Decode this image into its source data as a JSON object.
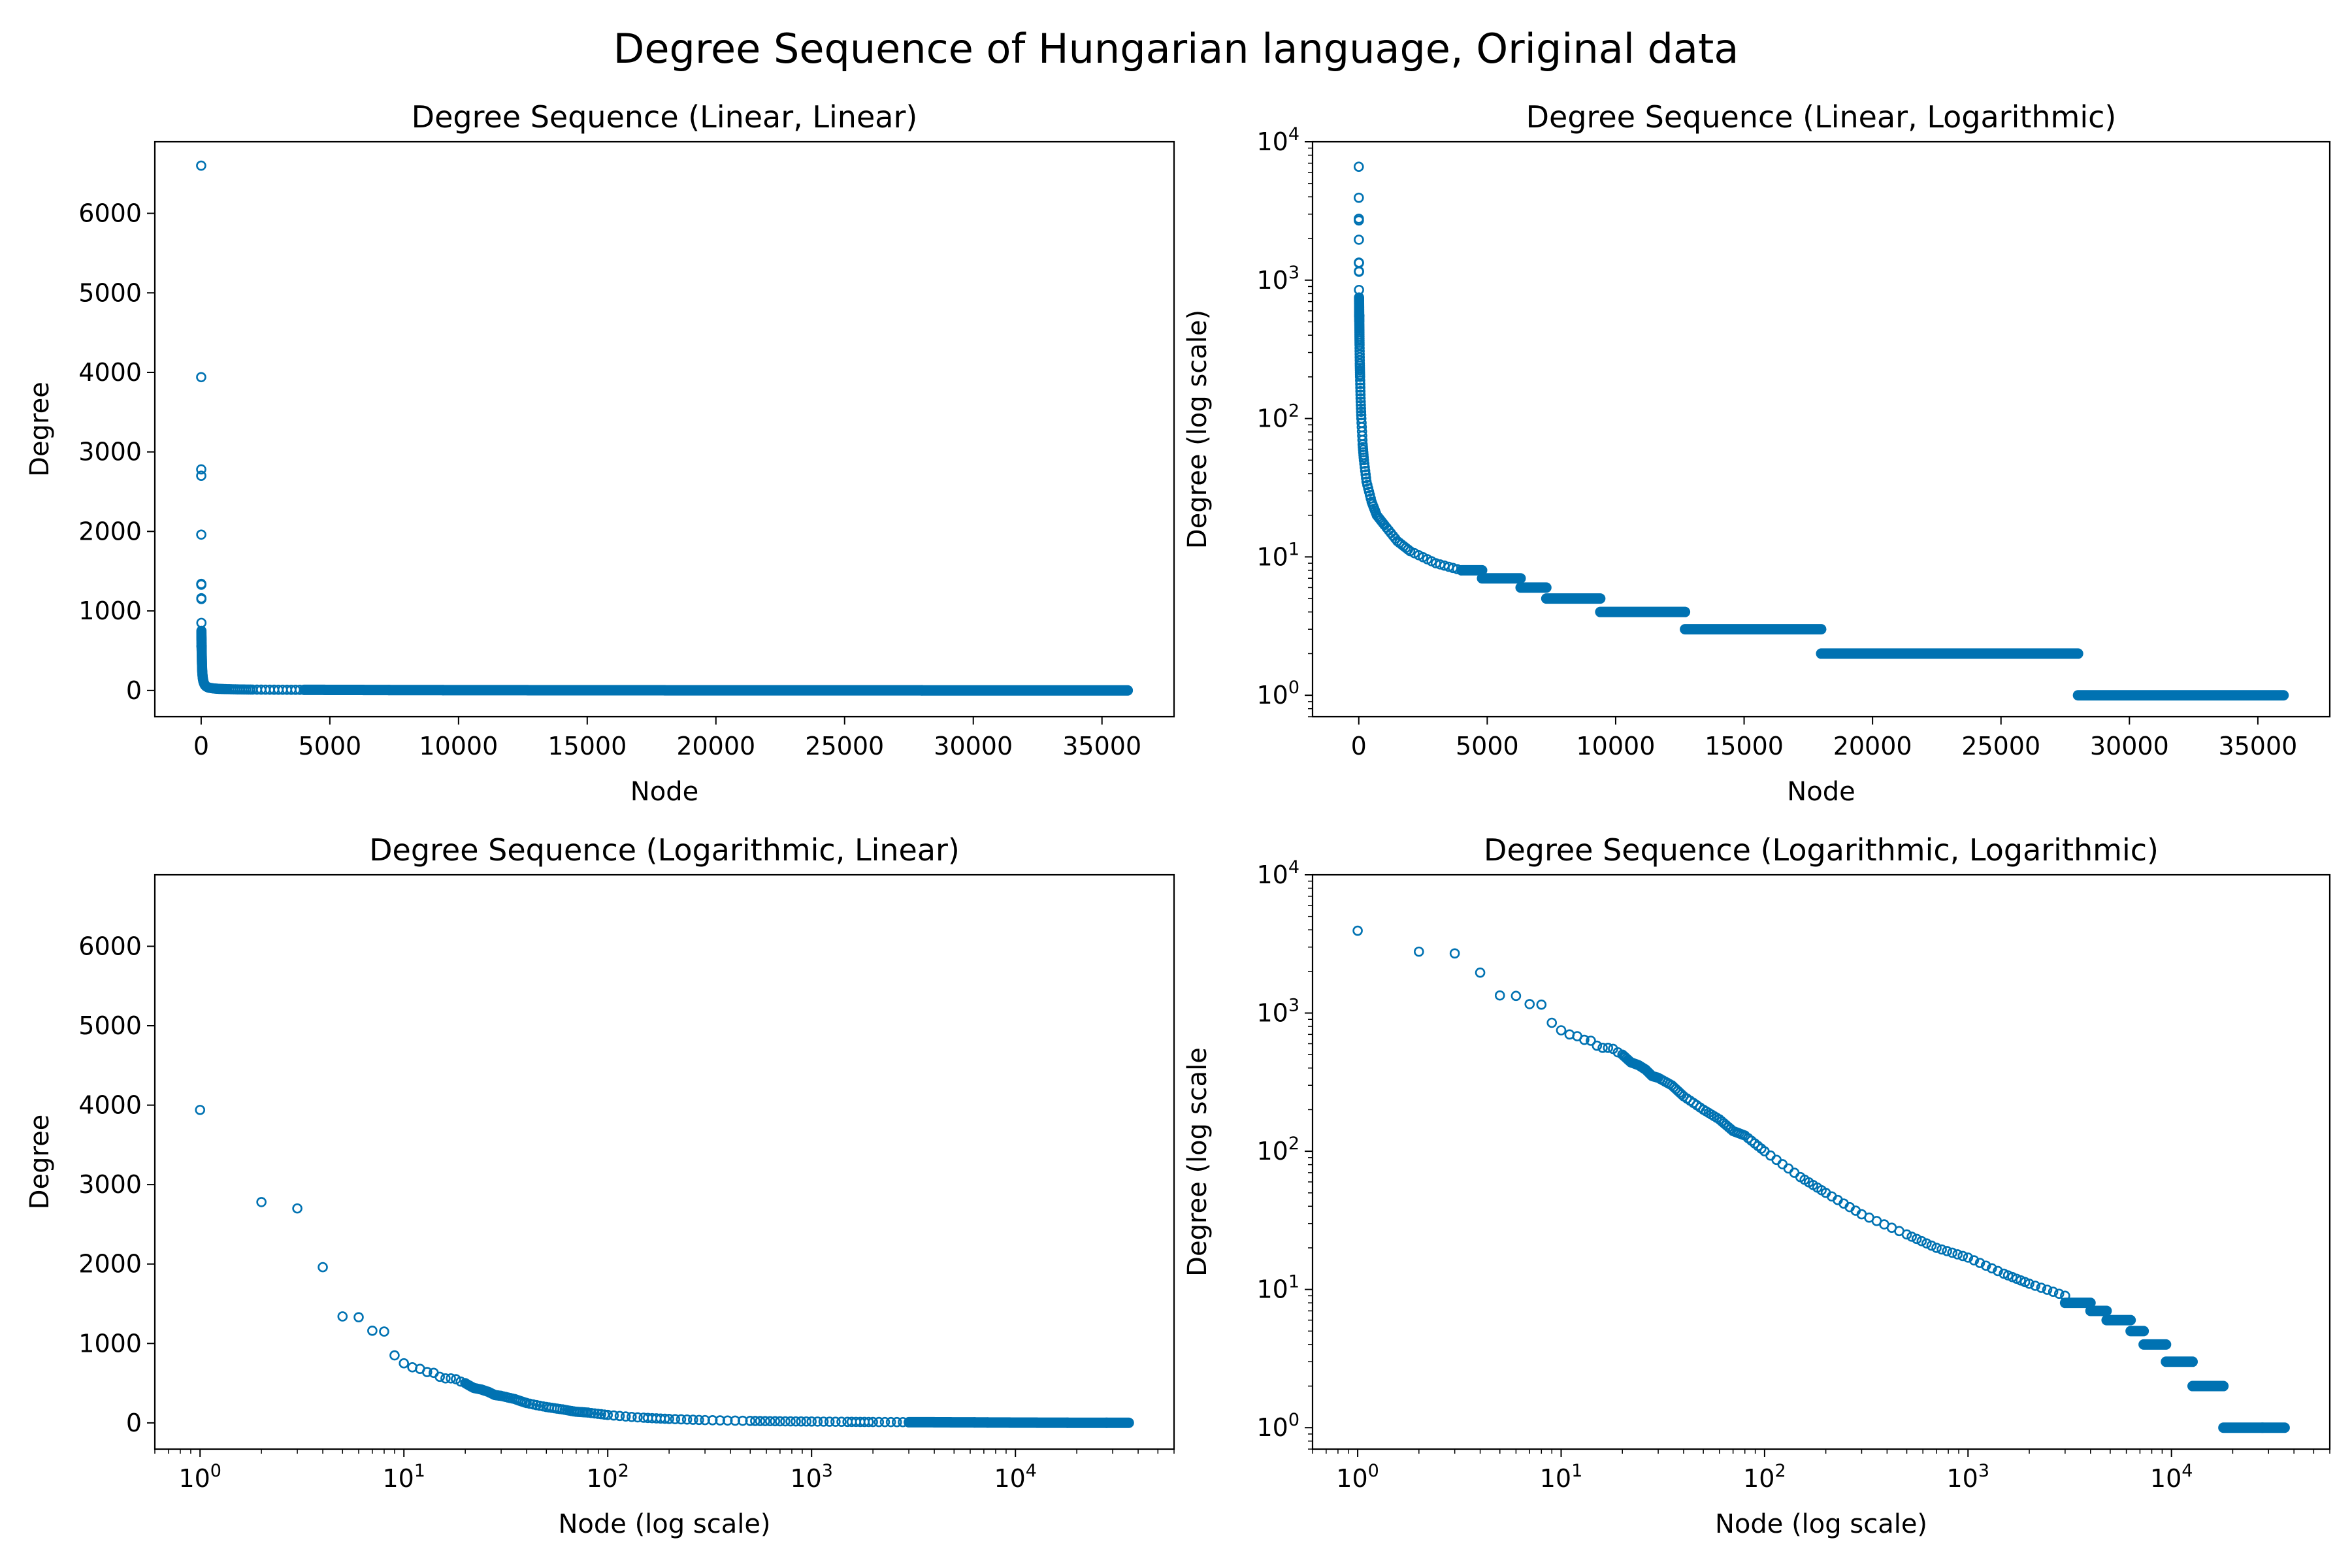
{
  "suptitle": "Degree Sequence of Hungarian language, Original data",
  "marker_color": "#0072b2",
  "chart_data": [
    {
      "type": "scatter",
      "title": "Degree Sequence (Linear, Linear)",
      "xlabel": "Node",
      "ylabel": "Degree",
      "xscale": "linear",
      "yscale": "linear",
      "xlim": [
        -1800,
        37800
      ],
      "ylim": [
        -330,
        6900
      ],
      "xticks": [
        0,
        5000,
        10000,
        15000,
        20000,
        25000,
        30000,
        35000
      ],
      "xtick_labels": [
        "0",
        "5000",
        "10000",
        "15000",
        "20000",
        "25000",
        "30000",
        "35000"
      ],
      "yticks": [
        0,
        1000,
        2000,
        3000,
        4000,
        5000,
        6000
      ],
      "ytick_labels": [
        "0",
        "1000",
        "2000",
        "3000",
        "4000",
        "5000",
        "6000"
      ],
      "grid": false,
      "series": [
        {
          "x": [
            0,
            1,
            2,
            3,
            4,
            5,
            6,
            7,
            8,
            9,
            10,
            12,
            14,
            16,
            18,
            20,
            25,
            30,
            40,
            50,
            70,
            100,
            150,
            200,
            300,
            500,
            700,
            1000,
            1500,
            2000,
            3000,
            4000
          ],
          "values": [
            6600,
            3940,
            2780,
            2700,
            1960,
            1340,
            1330,
            1160,
            1150,
            850,
            750,
            680,
            630,
            560,
            550,
            500,
            420,
            340,
            250,
            200,
            140,
            100,
            65,
            50,
            35,
            25,
            20,
            17,
            13,
            11,
            9,
            8
          ],
          "step_segments": [
            [
              4000,
              4800,
              8
            ],
            [
              4800,
              6300,
              7
            ],
            [
              6300,
              7300,
              6
            ],
            [
              7300,
              9400,
              5
            ],
            [
              9400,
              12700,
              4
            ],
            [
              12700,
              18000,
              3
            ],
            [
              18000,
              28000,
              2
            ],
            [
              28000,
              36000,
              1
            ]
          ]
        }
      ]
    },
    {
      "type": "scatter",
      "title": "Degree Sequence (Linear, Logarithmic)",
      "xlabel": "Node",
      "ylabel": "Degree (log scale)",
      "xscale": "linear",
      "yscale": "log",
      "xlim": [
        -1800,
        37800
      ],
      "ylim": [
        0.7,
        10000
      ],
      "xticks": [
        0,
        5000,
        10000,
        15000,
        20000,
        25000,
        30000,
        35000
      ],
      "xtick_labels": [
        "0",
        "5000",
        "10000",
        "15000",
        "20000",
        "25000",
        "30000",
        "35000"
      ],
      "yticks": [
        1,
        10,
        100,
        1000,
        10000
      ],
      "ytick_labels": [
        [
          "10",
          "0"
        ],
        [
          "10",
          "1"
        ],
        [
          "10",
          "2"
        ],
        [
          "10",
          "3"
        ],
        [
          "10",
          "4"
        ]
      ],
      "grid": false,
      "series": [
        {
          "x": [
            0,
            1,
            2,
            3,
            4,
            5,
            6,
            7,
            8,
            9,
            10,
            12,
            14,
            16,
            18,
            20,
            25,
            30,
            40,
            50,
            70,
            100,
            150,
            200,
            300,
            500,
            700,
            1000,
            1500,
            2000,
            3000,
            4000
          ],
          "values": [
            6600,
            3940,
            2780,
            2700,
            1960,
            1340,
            1330,
            1160,
            1150,
            850,
            750,
            680,
            630,
            560,
            550,
            500,
            420,
            340,
            250,
            200,
            140,
            100,
            65,
            50,
            35,
            25,
            20,
            17,
            13,
            11,
            9,
            8
          ],
          "step_segments": [
            [
              4000,
              4800,
              8
            ],
            [
              4800,
              6300,
              7
            ],
            [
              6300,
              7300,
              6
            ],
            [
              7300,
              9400,
              5
            ],
            [
              9400,
              12700,
              4
            ],
            [
              12700,
              18000,
              3
            ],
            [
              18000,
              28000,
              2
            ],
            [
              28000,
              36000,
              1
            ]
          ]
        }
      ]
    },
    {
      "type": "scatter",
      "title": "Degree Sequence (Logarithmic, Linear)",
      "xlabel": "Node (log scale)",
      "ylabel": "Degree",
      "xscale": "log",
      "yscale": "linear",
      "xlim": [
        0.6,
        60000
      ],
      "ylim": [
        -330,
        6900
      ],
      "xticks": [
        1,
        10,
        100,
        1000,
        10000
      ],
      "xtick_labels": [
        [
          "10",
          "0"
        ],
        [
          "10",
          "1"
        ],
        [
          "10",
          "2"
        ],
        [
          "10",
          "3"
        ],
        [
          "10",
          "4"
        ]
      ],
      "yticks": [
        0,
        1000,
        2000,
        3000,
        4000,
        5000,
        6000
      ],
      "ytick_labels": [
        "0",
        "1000",
        "2000",
        "3000",
        "4000",
        "5000",
        "6000"
      ],
      "grid": false,
      "series": [
        {
          "x": [
            1,
            2,
            3,
            4,
            5,
            6,
            7,
            8,
            9,
            10,
            11,
            12,
            13,
            14,
            15,
            16,
            17,
            18,
            19,
            20,
            22,
            24,
            26,
            28,
            30,
            35,
            40,
            50,
            60,
            70,
            80,
            100,
            150,
            200,
            300,
            500,
            700,
            1000,
            1500,
            2000,
            3000
          ],
          "values": [
            3940,
            2780,
            2700,
            1960,
            1340,
            1330,
            1160,
            1150,
            850,
            750,
            700,
            680,
            640,
            630,
            580,
            560,
            560,
            550,
            520,
            500,
            440,
            420,
            390,
            350,
            340,
            300,
            250,
            200,
            170,
            140,
            130,
            100,
            65,
            50,
            35,
            25,
            20,
            17,
            13,
            11,
            9
          ],
          "step_segments": [
            [
              3000,
              4000,
              8
            ],
            [
              4000,
              4800,
              7
            ],
            [
              4800,
              6300,
              6
            ],
            [
              6300,
              7300,
              5
            ],
            [
              7300,
              9400,
              4
            ],
            [
              9400,
              12700,
              3
            ],
            [
              12700,
              18000,
              2
            ],
            [
              18000,
              28000,
              1
            ],
            [
              28000,
              36000,
              1
            ]
          ]
        }
      ]
    },
    {
      "type": "scatter",
      "title": "Degree Sequence (Logarithmic, Logarithmic)",
      "xlabel": "Node (log scale)",
      "ylabel": "Degree (log scale",
      "xscale": "log",
      "yscale": "log",
      "xlim": [
        0.6,
        60000
      ],
      "ylim": [
        0.7,
        10000
      ],
      "xticks": [
        1,
        10,
        100,
        1000,
        10000
      ],
      "xtick_labels": [
        [
          "10",
          "0"
        ],
        [
          "10",
          "1"
        ],
        [
          "10",
          "2"
        ],
        [
          "10",
          "3"
        ],
        [
          "10",
          "4"
        ]
      ],
      "yticks": [
        1,
        10,
        100,
        1000,
        10000
      ],
      "ytick_labels": [
        [
          "10",
          "0"
        ],
        [
          "10",
          "1"
        ],
        [
          "10",
          "2"
        ],
        [
          "10",
          "3"
        ],
        [
          "10",
          "4"
        ]
      ],
      "grid": false,
      "series": [
        {
          "x": [
            1,
            2,
            3,
            4,
            5,
            6,
            7,
            8,
            9,
            10,
            11,
            12,
            13,
            14,
            15,
            16,
            17,
            18,
            19,
            20,
            22,
            24,
            26,
            28,
            30,
            35,
            40,
            50,
            60,
            70,
            80,
            100,
            150,
            200,
            300,
            500,
            700,
            1000,
            1500,
            2000,
            3000
          ],
          "values": [
            3940,
            2780,
            2700,
            1960,
            1340,
            1330,
            1160,
            1150,
            850,
            750,
            700,
            680,
            640,
            630,
            580,
            560,
            560,
            550,
            520,
            500,
            440,
            420,
            390,
            350,
            340,
            300,
            250,
            200,
            170,
            140,
            130,
            100,
            65,
            50,
            35,
            25,
            20,
            17,
            13,
            11,
            9
          ],
          "step_segments": [
            [
              3000,
              4000,
              8
            ],
            [
              4000,
              4800,
              7
            ],
            [
              4800,
              6300,
              6
            ],
            [
              6300,
              7300,
              5
            ],
            [
              7300,
              9400,
              4
            ],
            [
              9400,
              12700,
              3
            ],
            [
              12700,
              18000,
              2
            ],
            [
              18000,
              28000,
              1
            ],
            [
              28000,
              36000,
              1
            ]
          ]
        }
      ]
    }
  ]
}
